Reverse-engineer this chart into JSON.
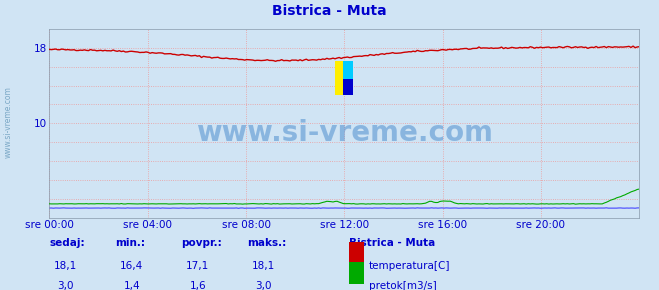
{
  "title": "Bistrica - Muta",
  "title_color": "#0000cc",
  "bg_color": "#d0e4f4",
  "plot_bg_color": "#d0e4f4",
  "grid_color": "#ee9999",
  "grid_style": ":",
  "temp_color": "#cc0000",
  "flow_color": "#00aa00",
  "level_color": "#4444ff",
  "tick_label_color": "#0000cc",
  "x_ticks": [
    0,
    4,
    8,
    12,
    16,
    20
  ],
  "x_tick_labels": [
    "sre 00:00",
    "sre 04:00",
    "sre 08:00",
    "sre 12:00",
    "sre 16:00",
    "sre 20:00"
  ],
  "y_ticks": [
    10,
    18
  ],
  "ylim": [
    0,
    20
  ],
  "xlim": [
    0,
    24
  ],
  "grid_y": [
    2,
    4,
    6,
    8,
    10,
    12,
    14,
    16,
    18
  ],
  "grid_x": [
    0,
    4,
    8,
    12,
    16,
    20
  ],
  "watermark": "www.si-vreme.com",
  "watermark_color": "#4488cc",
  "watermark_alpha": 0.5,
  "sidebar_text": "www.si-vreme.com",
  "sidebar_color": "#6699bb",
  "legend_title": "Bistrica - Muta",
  "legend_title_color": "#0000cc",
  "legend_temp_label": "temperatura[C]",
  "legend_flow_label": "pretok[m3/s]",
  "stats_headers": [
    "sedaj:",
    "min.:",
    "povpr.:",
    "maks.:"
  ],
  "stats_temp": [
    "18,1",
    "16,4",
    "17,1",
    "18,1"
  ],
  "stats_flow": [
    "3,0",
    "1,4",
    "1,6",
    "3,0"
  ],
  "stats_color": "#0000cc",
  "figsize": [
    6.59,
    2.9
  ],
  "dpi": 100
}
